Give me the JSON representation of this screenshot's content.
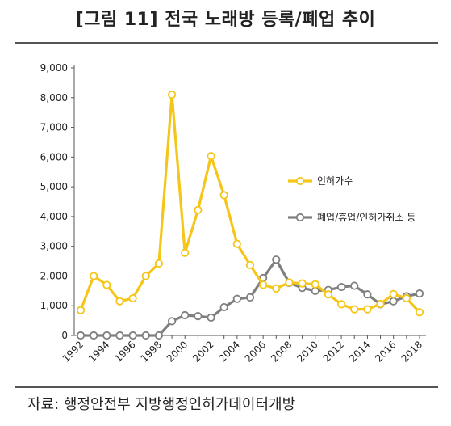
{
  "title": "[그림 11] 전국 노래방 등록/폐업 추이",
  "source": "자료: 행정안전부 지방행정인허가데이터개방",
  "colors": {
    "series1": "#F5C518",
    "series2": "#7F7F7F",
    "axis": "#555555"
  },
  "chart_data": {
    "type": "line",
    "x": [
      1992,
      1993,
      1994,
      1995,
      1996,
      1997,
      1998,
      1999,
      2000,
      2001,
      2002,
      2003,
      2004,
      2005,
      2006,
      2007,
      2008,
      2009,
      2010,
      2011,
      2012,
      2013,
      2014,
      2015,
      2016,
      2017,
      2018
    ],
    "xticks": [
      "1992",
      "1994",
      "1996",
      "1998",
      "2000",
      "2002",
      "2004",
      "2006",
      "2008",
      "2010",
      "2012",
      "2014",
      "2016",
      "2018"
    ],
    "yticks": [
      "0",
      "1,000",
      "2,000",
      "3,000",
      "4,000",
      "5,000",
      "6,000",
      "7,000",
      "8,000",
      "9,000"
    ],
    "ylim": [
      0,
      9000
    ],
    "grid": false,
    "series": [
      {
        "name": "인허가수",
        "values": [
          850,
          2000,
          1700,
          1150,
          1250,
          2000,
          2420,
          8100,
          2780,
          4220,
          6030,
          4720,
          3080,
          2370,
          1700,
          1580,
          1780,
          1750,
          1720,
          1380,
          1050,
          880,
          880,
          1060,
          1390,
          1250,
          780
        ]
      },
      {
        "name": "폐업/휴업/인허가취소 등",
        "values": [
          0,
          0,
          0,
          0,
          0,
          0,
          0,
          480,
          680,
          650,
          600,
          950,
          1230,
          1280,
          1930,
          2550,
          1770,
          1600,
          1500,
          1530,
          1630,
          1670,
          1380,
          1050,
          1150,
          1320,
          1410
        ]
      }
    ],
    "legend_position": "right"
  }
}
